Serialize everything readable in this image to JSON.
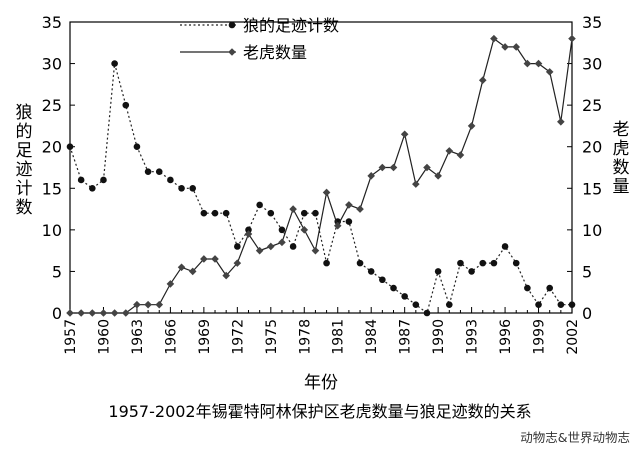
{
  "chart_data": {
    "type": "line",
    "title": "",
    "caption": "1957-2002年锡霍特阿林保护区老虎数量与狼足迹数的关系",
    "source": "动物志&世界动物志",
    "xlabel": "年份",
    "ylabel_left": "狼的足迹计数",
    "ylabel_right": "老虎数量",
    "xlim": [
      1957,
      2002
    ],
    "ylim_left": [
      0,
      35
    ],
    "ylim_right": [
      0,
      35
    ],
    "x_ticks": [
      1957,
      1960,
      1963,
      1966,
      1969,
      1972,
      1975,
      1978,
      1981,
      1984,
      1987,
      1990,
      1993,
      1996,
      1999,
      2002
    ],
    "y_ticks": [
      0,
      5,
      10,
      15,
      20,
      25,
      30,
      35
    ],
    "legend_position": "top-center",
    "grid": false,
    "series": [
      {
        "name": "狼的足迹计数",
        "axis": "left",
        "style": "dotted",
        "marker": "circle",
        "x": [
          1957,
          1958,
          1959,
          1960,
          1961,
          1962,
          1963,
          1964,
          1965,
          1966,
          1967,
          1968,
          1969,
          1970,
          1971,
          1972,
          1973,
          1974,
          1975,
          1976,
          1977,
          1978,
          1979,
          1980,
          1981,
          1982,
          1983,
          1984,
          1985,
          1986,
          1987,
          1988,
          1989,
          1990,
          1991,
          1992,
          1993,
          1994,
          1995,
          1996,
          1997,
          1998,
          1999,
          2000,
          2001,
          2002
        ],
        "values": [
          20,
          16,
          15,
          16,
          30,
          25,
          20,
          17,
          17,
          16,
          15,
          15,
          12,
          12,
          12,
          8,
          10,
          13,
          12,
          10,
          8,
          12,
          12,
          6,
          11,
          11,
          6,
          5,
          4,
          3,
          2,
          1,
          0,
          5,
          1,
          6,
          5,
          6,
          6,
          8,
          6,
          3,
          1,
          3,
          1,
          1
        ]
      },
      {
        "name": "老虎数量",
        "axis": "right",
        "style": "solid",
        "marker": "diamond",
        "x": [
          1957,
          1958,
          1959,
          1960,
          1961,
          1962,
          1963,
          1964,
          1965,
          1966,
          1967,
          1968,
          1969,
          1970,
          1971,
          1972,
          1973,
          1974,
          1975,
          1976,
          1977,
          1978,
          1979,
          1980,
          1981,
          1982,
          1983,
          1984,
          1985,
          1986,
          1987,
          1988,
          1989,
          1990,
          1991,
          1992,
          1993,
          1994,
          1995,
          1996,
          1997,
          1998,
          1999,
          2000,
          2001,
          2002
        ],
        "values": [
          0,
          0,
          0,
          0,
          0,
          0,
          1,
          1,
          1,
          3.5,
          5.5,
          5,
          6.5,
          6.5,
          4.5,
          6,
          9.5,
          7.5,
          8,
          8.5,
          12.5,
          10,
          7.5,
          14.5,
          10.5,
          13,
          12.5,
          16.5,
          17.5,
          17.5,
          21.5,
          15.5,
          17.5,
          16.5,
          19.5,
          19,
          22.5,
          28,
          33,
          32,
          32,
          30,
          30,
          29,
          23,
          33
        ]
      }
    ]
  }
}
